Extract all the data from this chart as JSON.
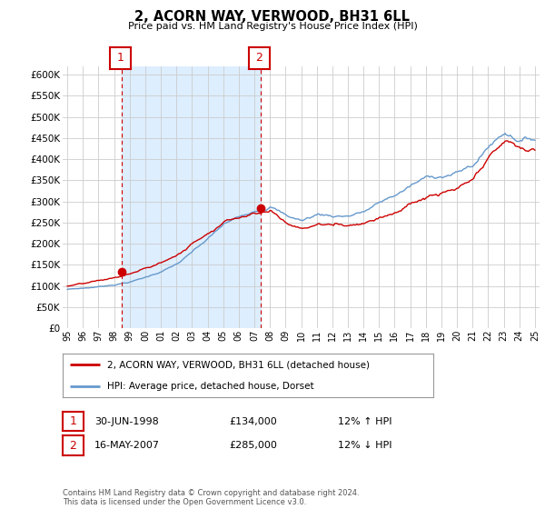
{
  "title": "2, ACORN WAY, VERWOOD, BH31 6LL",
  "subtitle": "Price paid vs. HM Land Registry's House Price Index (HPI)",
  "ylim": [
    0,
    620000
  ],
  "yticks": [
    0,
    50000,
    100000,
    150000,
    200000,
    250000,
    300000,
    350000,
    400000,
    450000,
    500000,
    550000,
    600000
  ],
  "legend_line1": "2, ACORN WAY, VERWOOD, BH31 6LL (detached house)",
  "legend_line2": "HPI: Average price, detached house, Dorset",
  "annotation1_label": "1",
  "annotation1_date": "30-JUN-1998",
  "annotation1_price": "£134,000",
  "annotation1_hpi": "12% ↑ HPI",
  "annotation2_label": "2",
  "annotation2_date": "16-MAY-2007",
  "annotation2_price": "£285,000",
  "annotation2_hpi": "12% ↓ HPI",
  "footer": "Contains HM Land Registry data © Crown copyright and database right 2024.\nThis data is licensed under the Open Government Licence v3.0.",
  "line_color_red": "#cc0000",
  "line_color_blue": "#6699cc",
  "shade_color": "#ddeeff",
  "grid_color": "#cccccc",
  "background_color": "#ffffff",
  "marker1_x": 1998.5,
  "marker1_y": 134000,
  "marker2_x": 2007.42,
  "marker2_y": 285000,
  "xlim_start": 1994.7,
  "xlim_end": 2025.3,
  "xtick_years": [
    1995,
    1996,
    1997,
    1998,
    1999,
    2000,
    2001,
    2002,
    2003,
    2004,
    2005,
    2006,
    2007,
    2008,
    2009,
    2010,
    2011,
    2012,
    2013,
    2014,
    2015,
    2016,
    2017,
    2018,
    2019,
    2020,
    2021,
    2022,
    2023,
    2024,
    2025
  ]
}
